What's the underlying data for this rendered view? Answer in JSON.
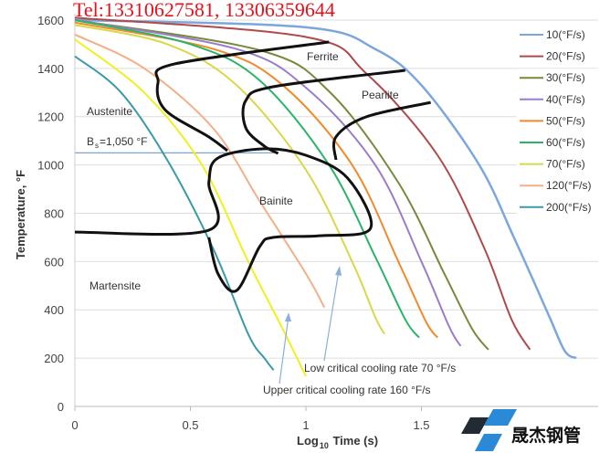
{
  "watermark": "Tel:13310627581, 13306359644",
  "logo_text": "晟杰钢管",
  "chart_data": {
    "type": "line",
    "title": "",
    "xlabel_main": "Log",
    "xlabel_sub": "10",
    "xlabel_rest": " Time (s)",
    "ylabel": "Temperature, °F",
    "xlim": [
      0,
      2.25
    ],
    "ylim": [
      0,
      1650
    ],
    "x_ticks": [
      "0",
      "0.5",
      "1",
      "1.5"
    ],
    "x_tick_values": [
      0,
      0.5,
      1,
      1.5
    ],
    "y_ticks": [
      "0",
      "200",
      "400",
      "600",
      "800",
      "1000",
      "1200",
      "1400",
      "1600"
    ],
    "y_tick_values": [
      0,
      200,
      400,
      600,
      800,
      1000,
      1200,
      1400,
      1600
    ],
    "grid": "horizontal",
    "legend_position": "right",
    "series": [
      {
        "name": "10(°F/s)",
        "color": "#7ba7dc",
        "points": [
          [
            0,
            1600
          ],
          [
            1,
            1570
          ],
          [
            1.3,
            1480
          ],
          [
            1.5,
            1330
          ],
          [
            1.75,
            1000
          ],
          [
            1.9,
            700
          ],
          [
            2.05,
            380
          ],
          [
            2.12,
            230
          ],
          [
            2.17,
            200
          ]
        ]
      },
      {
        "name": "20(°F/s)",
        "color": "#b04a4a",
        "points": [
          [
            0,
            1610
          ],
          [
            1,
            1530
          ],
          [
            1.26,
            1380
          ],
          [
            1.57,
            1040
          ],
          [
            1.77,
            660
          ],
          [
            1.89,
            360
          ],
          [
            1.97,
            235
          ]
        ]
      },
      {
        "name": "30(°F/s)",
        "color": "#768a3c",
        "points": [
          [
            0,
            1600
          ],
          [
            0.8,
            1475
          ],
          [
            1.1,
            1305
          ],
          [
            1.4,
            927
          ],
          [
            1.6,
            548
          ],
          [
            1.72,
            320
          ],
          [
            1.79,
            235
          ]
        ]
      },
      {
        "name": "40(°F/s)",
        "color": "#9c7cc8",
        "points": [
          [
            0,
            1600
          ],
          [
            0.7,
            1480
          ],
          [
            1,
            1320
          ],
          [
            1.3,
            1000
          ],
          [
            1.5,
            600
          ],
          [
            1.62,
            330
          ],
          [
            1.67,
            250
          ]
        ]
      },
      {
        "name": "50(°F/s)",
        "color": "#f08a2a",
        "points": [
          [
            0,
            1590
          ],
          [
            0.6,
            1480
          ],
          [
            0.9,
            1330
          ],
          [
            1.2,
            1000
          ],
          [
            1.4,
            600
          ],
          [
            1.52,
            350
          ],
          [
            1.57,
            285
          ]
        ]
      },
      {
        "name": "60(°F/s)",
        "color": "#2cb36a",
        "points": [
          [
            0,
            1600
          ],
          [
            0.5,
            1500
          ],
          [
            0.8,
            1350
          ],
          [
            1.1,
            1000
          ],
          [
            1.3,
            620
          ],
          [
            1.43,
            360
          ],
          [
            1.49,
            285
          ]
        ]
      },
      {
        "name": "70(°F/s)",
        "color": "#d8d84a",
        "points": [
          [
            0,
            1580
          ],
          [
            0.4,
            1500
          ],
          [
            0.7,
            1330
          ],
          [
            1.0,
            980
          ],
          [
            1.2,
            600
          ],
          [
            1.3,
            370
          ],
          [
            1.34,
            300
          ]
        ]
      },
      {
        "name": "120(°F/s)",
        "color": "#f2b08a",
        "points": [
          [
            0,
            1540
          ],
          [
            0.3,
            1400
          ],
          [
            0.6,
            1150
          ],
          [
            0.8,
            850
          ],
          [
            1.0,
            550
          ],
          [
            1.08,
            410
          ]
        ]
      },
      {
        "name": "200(°F/s)",
        "color": "#3a9aa8",
        "points": [
          [
            0,
            1450
          ],
          [
            0.2,
            1300
          ],
          [
            0.4,
            1020
          ],
          [
            0.6,
            650
          ],
          [
            0.75,
            300
          ],
          [
            0.82,
            200
          ],
          [
            0.86,
            150
          ]
        ]
      },
      {
        "color": "#f0f020",
        "points": [
          [
            0,
            1520
          ],
          [
            0.3,
            1300
          ],
          [
            0.55,
            1000
          ],
          [
            0.75,
            600
          ],
          [
            0.9,
            320
          ],
          [
            1.0,
            125
          ]
        ]
      }
    ],
    "regions": [
      {
        "label": "Ferrite",
        "points": [
          [
            1.1,
            1509
          ],
          [
            0.43,
            1418
          ],
          [
            0.36,
            1343
          ],
          [
            0.39,
            1229
          ],
          [
            0.58,
            1116
          ],
          [
            0.66,
            1059
          ]
        ]
      },
      {
        "label": "Pearlite",
        "points": [
          [
            1.43,
            1392
          ],
          [
            0.86,
            1324
          ],
          [
            0.74,
            1267
          ],
          [
            0.74,
            1153
          ],
          [
            0.82,
            1078
          ],
          [
            0.88,
            1048
          ]
        ]
      },
      {
        "points": [
          [
            1.54,
            1259
          ],
          [
            1.26,
            1199
          ],
          [
            1.13,
            1116
          ],
          [
            1.13,
            1021
          ]
        ]
      },
      {
        "label": "Bainite",
        "points": [
          [
            0,
            722
          ],
          [
            0.58,
            730
          ],
          [
            0.58,
            927
          ],
          [
            0.62,
            1029
          ],
          [
            0.82,
            1067
          ],
          [
            1.0,
            1040
          ],
          [
            1.18,
            946
          ],
          [
            1.28,
            738
          ],
          [
            1.06,
            707
          ],
          [
            0.86,
            700
          ],
          [
            0.8,
            662
          ],
          [
            0.7,
            480
          ],
          [
            0.62,
            548
          ],
          [
            0.58,
            700
          ]
        ]
      }
    ],
    "labels": {
      "austenite": "Austenite",
      "martensite": "Martensite",
      "bs_prefix": "B",
      "bs_sub": "s",
      "bs_rest": "=1,050 °F",
      "low_critical": "Low critical cooling rate 70 °F/s",
      "upper_critical": "Upper critical cooling rate 160 °F/s"
    },
    "bs_temperature": 1050
  }
}
